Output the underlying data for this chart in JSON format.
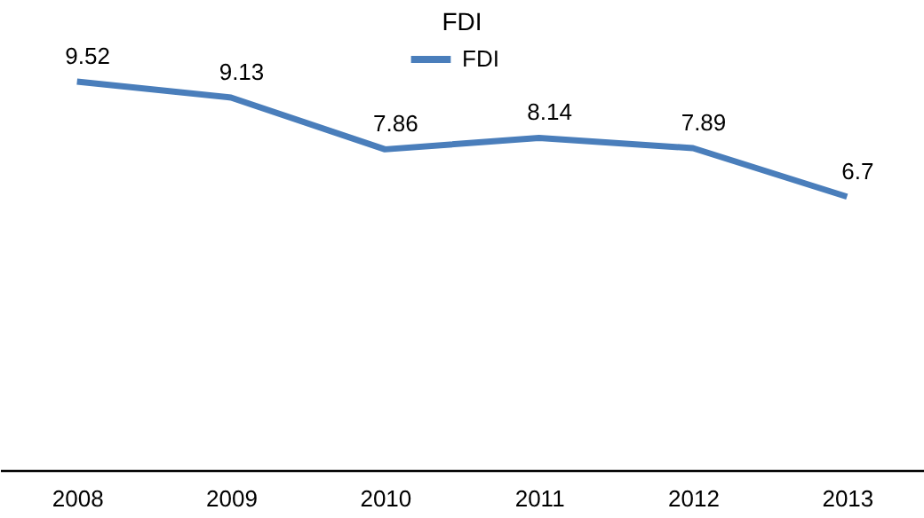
{
  "chart_data": {
    "type": "line",
    "title": "FDI",
    "categories": [
      "2008",
      "2009",
      "2010",
      "2011",
      "2012",
      "2013"
    ],
    "series": [
      {
        "name": "FDI",
        "color": "#4a7ebb",
        "values": [
          9.52,
          9.13,
          7.86,
          8.14,
          7.89,
          6.7
        ]
      }
    ],
    "tick_labels": "x",
    "data_labels": true,
    "legend": "top",
    "grid": false
  }
}
